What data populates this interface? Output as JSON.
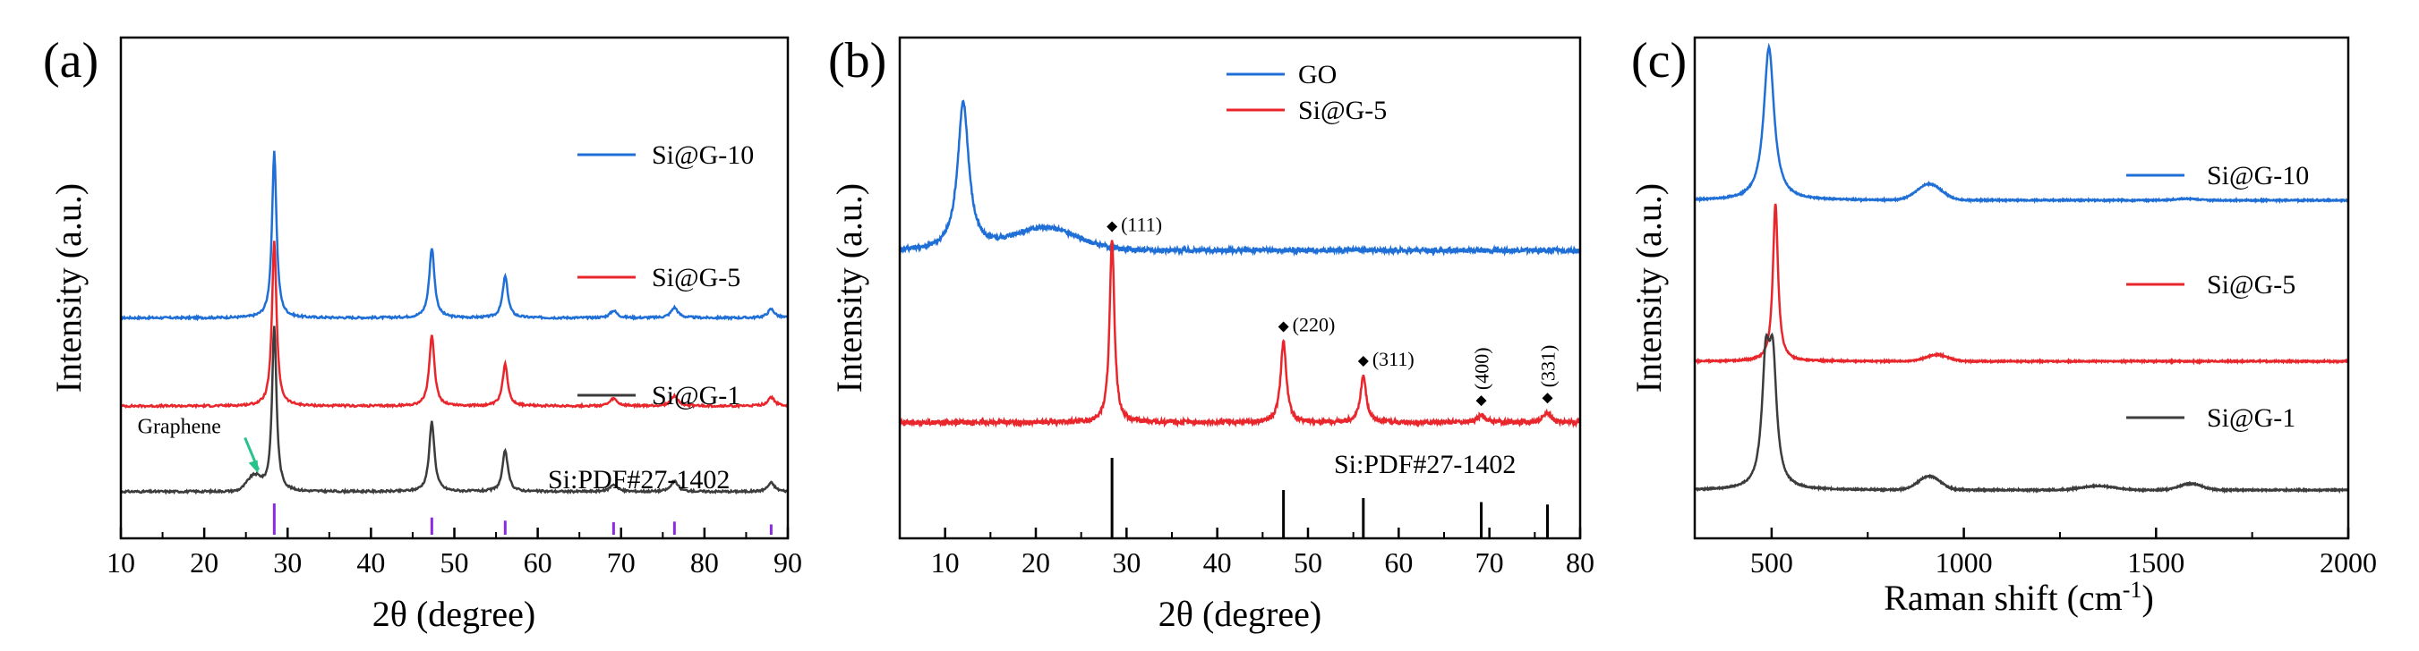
{
  "colors": {
    "blue": "#1f6fd6",
    "red": "#e8262b",
    "gray": "#3c3c3c",
    "purple": "#8a2be2",
    "green": "#29c28a",
    "black": "#000000"
  },
  "chart_data": [
    {
      "panel_label": "(a)",
      "type": "line",
      "xlabel": "2θ (degree)",
      "ylabel": "Intensity (a.u.)",
      "xlim": [
        10,
        90
      ],
      "xticks": [
        10,
        20,
        30,
        40,
        50,
        60,
        70,
        80,
        90
      ],
      "yticks": [],
      "series": [
        {
          "name": "Si@G-10",
          "color": "#1f6fd6",
          "baseline": 4.25,
          "background": [],
          "peaks": [
            [
              28.4,
              3.2,
              0.32
            ],
            [
              47.3,
              1.35,
              0.38
            ],
            [
              56.1,
              0.8,
              0.38
            ],
            [
              69.1,
              0.14,
              0.5
            ],
            [
              76.4,
              0.2,
              0.5
            ],
            [
              88.0,
              0.17,
              0.5
            ]
          ]
        },
        {
          "name": "Si@G-5",
          "color": "#e8262b",
          "baseline": 2.55,
          "background": [],
          "peaks": [
            [
              28.4,
              3.2,
              0.32
            ],
            [
              47.3,
              1.35,
              0.38
            ],
            [
              56.1,
              0.8,
              0.38
            ],
            [
              69.1,
              0.14,
              0.5
            ],
            [
              76.4,
              0.2,
              0.5
            ],
            [
              88.0,
              0.17,
              0.5
            ]
          ]
        },
        {
          "name": "Si@G-1",
          "color": "#3c3c3c",
          "baseline": 0.9,
          "background": [
            [
              26.0,
              0.28,
              1.2
            ]
          ],
          "peaks": [
            [
              28.4,
              3.2,
              0.32
            ],
            [
              47.3,
              1.35,
              0.38
            ],
            [
              56.1,
              0.8,
              0.38
            ],
            [
              69.1,
              0.14,
              0.5
            ],
            [
              76.4,
              0.2,
              0.5
            ],
            [
              88.0,
              0.17,
              0.5
            ]
          ]
        }
      ],
      "reference": {
        "label": "Si:PDF#27-1402",
        "color": "#8a2be2",
        "positions": [
          28.4,
          47.3,
          56.1,
          69.1,
          76.4,
          88.0
        ],
        "heights": [
          1.0,
          0.55,
          0.45,
          0.4,
          0.42,
          0.33
        ]
      },
      "annotations": [
        {
          "text": "Graphene",
          "x": 26.5,
          "color": "#29c28a"
        }
      ]
    },
    {
      "panel_label": "(b)",
      "type": "line",
      "xlabel": "2θ (degree)",
      "ylabel": "Intensity (a.u.)",
      "xlim": [
        5,
        80
      ],
      "xticks": [
        10,
        20,
        30,
        40,
        50,
        60,
        70,
        80
      ],
      "yticks": [],
      "series": [
        {
          "name": "GO",
          "color": "#1f6fd6",
          "baseline": 4.6,
          "background": [
            [
              21.0,
              0.35,
              5.0
            ]
          ],
          "peaks": [
            [
              12.0,
              2.35,
              0.75
            ]
          ]
        },
        {
          "name": "Si@G-5",
          "color": "#e8262b",
          "baseline": 1.85,
          "background": [],
          "peaks": [
            [
              28.4,
              2.9,
              0.32
            ],
            [
              47.3,
              1.3,
              0.38
            ],
            [
              56.1,
              0.75,
              0.38
            ],
            [
              69.1,
              0.12,
              0.5
            ],
            [
              76.4,
              0.16,
              0.5
            ]
          ]
        }
      ],
      "reference": {
        "label": "Si:PDF#27-1402",
        "color": "#000000",
        "positions": [
          28.4,
          47.3,
          56.1,
          69.1,
          76.4
        ],
        "heights": [
          1.0,
          0.6,
          0.5,
          0.45,
          0.42
        ]
      },
      "peak_labels": [
        {
          "text": "(111)",
          "x": 28.4,
          "rotated": false
        },
        {
          "text": "(220)",
          "x": 47.3,
          "rotated": false
        },
        {
          "text": "(311)",
          "x": 56.1,
          "rotated": false
        },
        {
          "text": "(400)",
          "x": 69.1,
          "rotated": true
        },
        {
          "text": "(331)",
          "x": 76.4,
          "rotated": true
        }
      ]
    },
    {
      "panel_label": "(c)",
      "type": "line",
      "xlabel": "Raman shift (cm",
      "xlabel_sup": "-1",
      "xlabel_end": ")",
      "ylabel": "Intensity (a.u.)",
      "xlim": [
        300,
        2000
      ],
      "xticks": [
        500,
        1000,
        1500,
        2000
      ],
      "yticks": [],
      "series": [
        {
          "name": "Si@G-10",
          "color": "#1f6fd6",
          "baseline": 4.2,
          "background": [
            [
              910,
              0.2,
              45
            ],
            [
              1580,
              0.02,
              40
            ]
          ],
          "peaks": [
            [
              493,
              1.9,
              16
            ]
          ]
        },
        {
          "name": "Si@G-5",
          "color": "#e8262b",
          "baseline": 2.2,
          "background": [
            [
              930,
              0.08,
              40
            ]
          ],
          "peaks": [
            [
              510,
              1.95,
              8
            ]
          ]
        },
        {
          "name": "Si@G-1",
          "color": "#3c3c3c",
          "baseline": 0.6,
          "background": [
            [
              910,
              0.17,
              40
            ],
            [
              1350,
              0.05,
              60
            ],
            [
              1590,
              0.08,
              40
            ]
          ],
          "peaks": [
            [
              485,
              1.45,
              12
            ],
            [
              503,
              1.45,
              12
            ]
          ]
        }
      ]
    }
  ]
}
